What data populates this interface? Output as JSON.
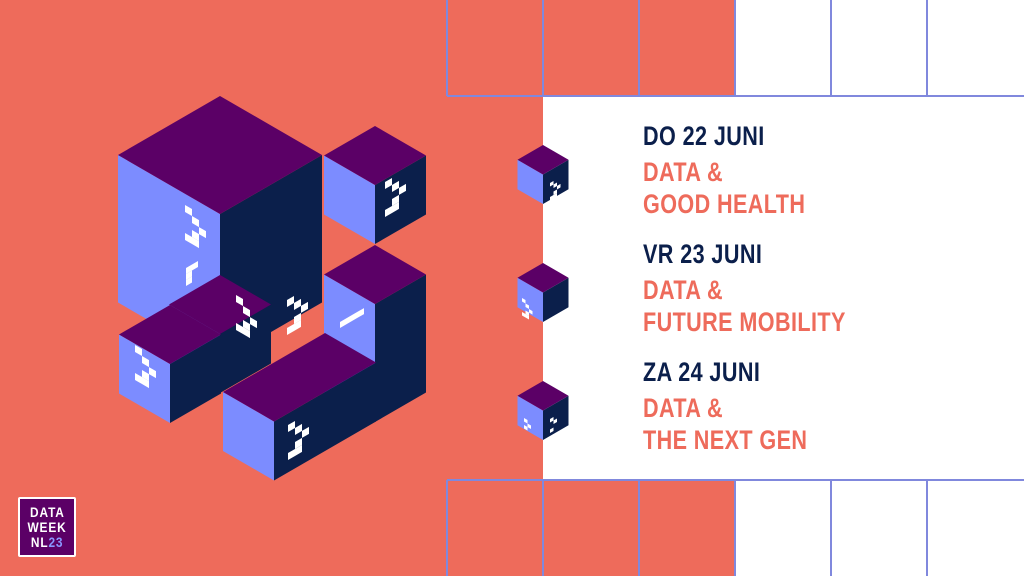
{
  "colors": {
    "background": "#EE6B5B",
    "panel": "#FFFFFF",
    "grid_line": "#8088DD",
    "cube_top": "#5B0066",
    "cube_left": "#7C8CFF",
    "cube_right": "#0B1F4B",
    "date_text": "#0B1F4B",
    "title_text": "#EE6B5B"
  },
  "events": [
    {
      "day": "DO 22 JUNI",
      "title_line1": "DATA &",
      "title_line2": "GOOD HEALTH",
      "icon": "cube-icon"
    },
    {
      "day": "VR 23 JUNI",
      "title_line1": "DATA &",
      "title_line2": "FUTURE MOBILITY",
      "icon": "cube-icon"
    },
    {
      "day": "ZA 24 JUNI",
      "title_line1": "DATA &",
      "title_line2": "THE NEXT GEN",
      "icon": "cube-icon"
    }
  ],
  "logo": {
    "line1": "DATA",
    "line2": "WEEK",
    "line3": "NL",
    "year": "23"
  }
}
